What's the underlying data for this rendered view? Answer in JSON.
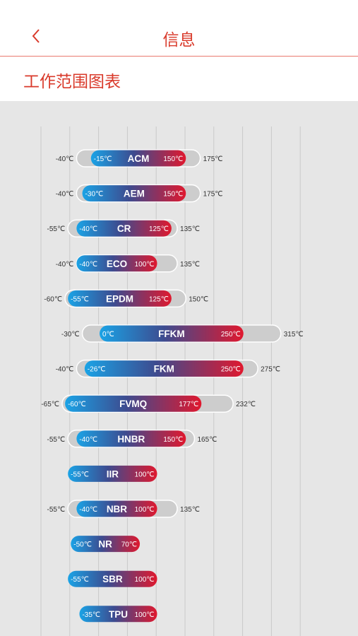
{
  "header": {
    "title": "信息",
    "back_icon": "chevron-left-icon"
  },
  "section": {
    "title": "工作范围图表"
  },
  "colors": {
    "accent": "#d93a2b",
    "cold": "#1aa3e6",
    "mid": "#3d4b8f",
    "hot": "#e0182e",
    "track": "#cfcfcf",
    "background": "#e6e6e6"
  },
  "chart_data": {
    "type": "bar",
    "unit": "°C",
    "categories": [
      "ACM",
      "AEM",
      "CR",
      "ECO",
      "EPDM",
      "FFKM",
      "FKM",
      "FVMQ",
      "HNBR",
      "IIR",
      "NBR",
      "NR",
      "SBR",
      "TPU"
    ],
    "series": [
      {
        "name": "",
        "values": [
          -40,
          -40,
          -55,
          -40,
          -60,
          -30,
          -40,
          -65,
          -55,
          null,
          -55,
          null,
          null,
          null
        ]
      },
      {
        "name": "",
        "values": [
          -15,
          -30,
          -40,
          -40,
          -55,
          0,
          -26,
          -60,
          -40,
          -55,
          -40,
          -50,
          -55,
          -35
        ]
      },
      {
        "name": "",
        "values": [
          150,
          150,
          125,
          100,
          125,
          250,
          250,
          177,
          150,
          100,
          100,
          70,
          100,
          100
        ]
      },
      {
        "name": "",
        "values": [
          175,
          175,
          135,
          135,
          150,
          315,
          275,
          232,
          165,
          null,
          135,
          null,
          null,
          null
        ]
      }
    ],
    "rows": [
      {
        "name": "ACM",
        "outer_min": -40,
        "inner_min": -15,
        "inner_max": 150,
        "outer_max": 175,
        "outer_min_label": "-40℃",
        "inner_min_label": "-15℃",
        "inner_max_label": "150℃",
        "outer_max_label": "175℃"
      },
      {
        "name": "AEM",
        "outer_min": -40,
        "inner_min": -30,
        "inner_max": 150,
        "outer_max": 175,
        "outer_min_label": "-40℃",
        "inner_min_label": "-30℃",
        "inner_max_label": "150℃",
        "outer_max_label": "175℃"
      },
      {
        "name": "CR",
        "outer_min": -55,
        "inner_min": -40,
        "inner_max": 125,
        "outer_max": 135,
        "outer_min_label": "-55℃",
        "inner_min_label": "-40℃",
        "inner_max_label": "125℃",
        "outer_max_label": "135℃"
      },
      {
        "name": "ECO",
        "outer_min": -40,
        "inner_min": -40,
        "inner_max": 100,
        "outer_max": 135,
        "outer_min_label": "-40℃",
        "inner_min_label": "-40℃",
        "inner_max_label": "100℃",
        "outer_max_label": "135℃"
      },
      {
        "name": "EPDM",
        "outer_min": -60,
        "inner_min": -55,
        "inner_max": 125,
        "outer_max": 150,
        "outer_min_label": "-60℃",
        "inner_min_label": "-55℃",
        "inner_max_label": "125℃",
        "outer_max_label": "150℃"
      },
      {
        "name": "FFKM",
        "outer_min": -30,
        "inner_min": 0,
        "inner_max": 250,
        "outer_max": 315,
        "outer_min_label": "-30℃",
        "inner_min_label": "0℃",
        "inner_max_label": "250℃",
        "outer_max_label": "315℃"
      },
      {
        "name": "FKM",
        "outer_min": -40,
        "inner_min": -26,
        "inner_max": 250,
        "outer_max": 275,
        "outer_min_label": "-40℃",
        "inner_min_label": "-26℃",
        "inner_max_label": "250℃",
        "outer_max_label": "275℃"
      },
      {
        "name": "FVMQ",
        "outer_min": -65,
        "inner_min": -60,
        "inner_max": 177,
        "outer_max": 232,
        "outer_min_label": "-65℃",
        "inner_min_label": "-60℃",
        "inner_max_label": "177℃",
        "outer_max_label": "232℃"
      },
      {
        "name": "HNBR",
        "outer_min": -55,
        "inner_min": -40,
        "inner_max": 150,
        "outer_max": 165,
        "outer_min_label": "-55℃",
        "inner_min_label": "-40℃",
        "inner_max_label": "150℃",
        "outer_max_label": "165℃"
      },
      {
        "name": "IIR",
        "outer_min": null,
        "inner_min": -55,
        "inner_max": 100,
        "outer_max": null,
        "outer_min_label": "",
        "inner_min_label": "-55℃",
        "inner_max_label": "100℃",
        "outer_max_label": ""
      },
      {
        "name": "NBR",
        "outer_min": -55,
        "inner_min": -40,
        "inner_max": 100,
        "outer_max": 135,
        "outer_min_label": "-55℃",
        "inner_min_label": "-40℃",
        "inner_max_label": "100℃",
        "outer_max_label": "135℃"
      },
      {
        "name": "NR",
        "outer_min": null,
        "inner_min": -50,
        "inner_max": 70,
        "outer_max": null,
        "outer_min_label": "",
        "inner_min_label": "-50℃",
        "inner_max_label": "70℃",
        "outer_max_label": ""
      },
      {
        "name": "SBR",
        "outer_min": null,
        "inner_min": -55,
        "inner_max": 100,
        "outer_max": null,
        "outer_min_label": "",
        "inner_min_label": "-55℃",
        "inner_max_label": "100℃",
        "outer_max_label": ""
      },
      {
        "name": "TPU",
        "outer_min": null,
        "inner_min": -35,
        "inner_max": 100,
        "outer_max": null,
        "outer_min_label": "",
        "inner_min_label": "-35℃",
        "inner_max_label": "100℃",
        "outer_max_label": ""
      }
    ],
    "xlim": [
      -100,
      400
    ],
    "grid": true,
    "title": "",
    "xlabel": "",
    "ylabel": ""
  }
}
